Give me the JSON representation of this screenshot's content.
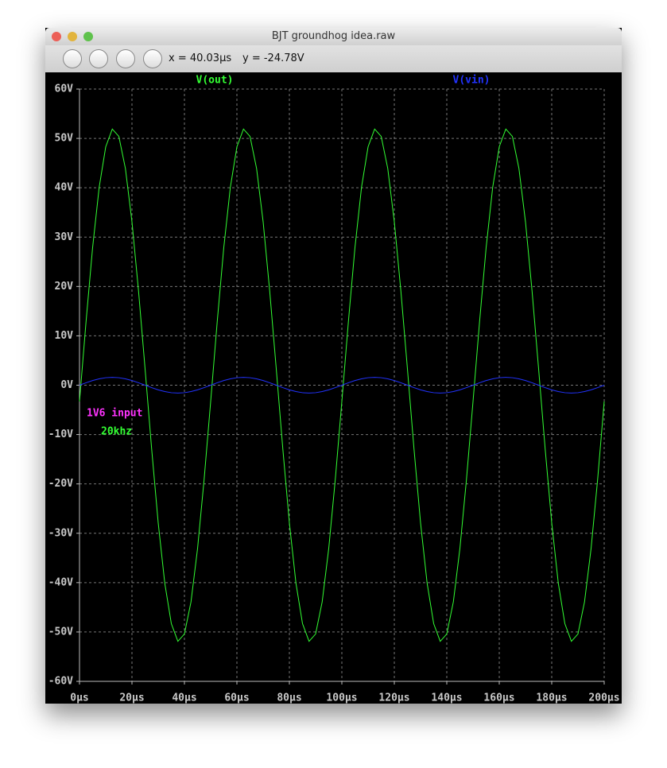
{
  "window": {
    "title": "BJT groundhog idea.raw",
    "cursor_x": "x = 40.03µs",
    "cursor_y": "y = -24.78V"
  },
  "chart_data": {
    "type": "line",
    "x": [
      0,
      2.5,
      5,
      7.5,
      10,
      12.5,
      15,
      17.5,
      20,
      22.5,
      25,
      27.5,
      30,
      32.5,
      35,
      37.5,
      40,
      42.5,
      45,
      47.5,
      50,
      52.5,
      55,
      57.5,
      60,
      62.5,
      65,
      67.5,
      70,
      72.5,
      75,
      77.5,
      80,
      82.5,
      85,
      87.5,
      90,
      92.5,
      95,
      97.5,
      100,
      102.5,
      105,
      107.5,
      110,
      112.5,
      115,
      117.5,
      120,
      122.5,
      125,
      127.5,
      130,
      132.5,
      135,
      137.5,
      140,
      142.5,
      145,
      147.5,
      150,
      152.5,
      155,
      157.5,
      160,
      162.5,
      165,
      167.5,
      170,
      172.5,
      175,
      177.5,
      180,
      182.5,
      185,
      187.5,
      190,
      192.5,
      195,
      197.5,
      200
    ],
    "series": [
      {
        "name": "V(out)",
        "color": "#33ff33",
        "values": [
          -3.3,
          12.9,
          27.9,
          40.1,
          48.3,
          51.9,
          50.4,
          43.9,
          33.1,
          19.1,
          3.3,
          -12.9,
          -27.9,
          -40.1,
          -48.3,
          -51.9,
          -50.4,
          -43.9,
          -33.1,
          -19.1,
          -3.3,
          12.9,
          27.9,
          40.1,
          48.3,
          51.9,
          50.4,
          43.9,
          33.1,
          19.1,
          3.3,
          -12.9,
          -27.9,
          -40.1,
          -48.3,
          -51.9,
          -50.4,
          -43.9,
          -33.1,
          -19.1,
          -3.3,
          12.9,
          27.9,
          40.1,
          48.3,
          51.9,
          50.4,
          43.9,
          33.1,
          19.1,
          3.3,
          -12.9,
          -27.9,
          -40.1,
          -48.3,
          -51.9,
          -50.4,
          -43.9,
          -33.1,
          -19.1,
          -3.3,
          12.9,
          27.9,
          40.1,
          48.3,
          51.9,
          50.4,
          43.9,
          33.1,
          19.1,
          3.3,
          -12.9,
          -27.9,
          -40.1,
          -48.3,
          -51.9,
          -50.4,
          -43.9,
          -33.1,
          -19.1,
          -3.3
        ]
      },
      {
        "name": "V(vin)",
        "color": "#2233ff",
        "values": [
          0,
          0.49,
          0.94,
          1.29,
          1.52,
          1.6,
          1.52,
          1.29,
          0.94,
          0.49,
          0,
          -0.49,
          -0.94,
          -1.29,
          -1.52,
          -1.6,
          -1.52,
          -1.29,
          -0.94,
          -0.49,
          0,
          0.49,
          0.94,
          1.29,
          1.52,
          1.6,
          1.52,
          1.29,
          0.94,
          0.49,
          0,
          -0.49,
          -0.94,
          -1.29,
          -1.52,
          -1.6,
          -1.52,
          -1.29,
          -0.94,
          -0.49,
          0,
          0.49,
          0.94,
          1.29,
          1.52,
          1.6,
          1.52,
          1.29,
          0.94,
          0.49,
          0,
          -0.49,
          -0.94,
          -1.29,
          -1.52,
          -1.6,
          -1.52,
          -1.29,
          -0.94,
          -0.49,
          0,
          0.49,
          0.94,
          1.29,
          1.52,
          1.6,
          1.52,
          1.29,
          0.94,
          0.49,
          0,
          -0.49,
          -0.94,
          -1.29,
          -1.52,
          -1.6,
          -1.52,
          -1.29,
          -0.94,
          -0.49,
          0
        ]
      }
    ],
    "xlim": [
      0,
      200
    ],
    "xticks": [
      {
        "value": 0,
        "label": "0µs"
      },
      {
        "value": 20,
        "label": "20µs"
      },
      {
        "value": 40,
        "label": "40µs"
      },
      {
        "value": 60,
        "label": "60µs"
      },
      {
        "value": 80,
        "label": "80µs"
      },
      {
        "value": 100,
        "label": "100µs"
      },
      {
        "value": 120,
        "label": "120µs"
      },
      {
        "value": 140,
        "label": "140µs"
      },
      {
        "value": 160,
        "label": "160µs"
      },
      {
        "value": 180,
        "label": "180µs"
      },
      {
        "value": 200,
        "label": "200µs"
      }
    ],
    "ylim": [
      -60,
      60
    ],
    "yticks": [
      {
        "value": -60,
        "label": "-60V"
      },
      {
        "value": -50,
        "label": "-50V"
      },
      {
        "value": -40,
        "label": "-40V"
      },
      {
        "value": -30,
        "label": "-30V"
      },
      {
        "value": -20,
        "label": "-20V"
      },
      {
        "value": -10,
        "label": "-10V"
      },
      {
        "value": 0,
        "label": "0V"
      },
      {
        "value": 10,
        "label": "10V"
      },
      {
        "value": 20,
        "label": "20V"
      },
      {
        "value": 30,
        "label": "30V"
      },
      {
        "value": 40,
        "label": "40V"
      },
      {
        "value": 50,
        "label": "50V"
      },
      {
        "value": 60,
        "label": "60V"
      }
    ],
    "grid": true,
    "annotations": [
      {
        "text": "1V6 input",
        "color": "#ff33ff"
      },
      {
        "text": "20khz",
        "color": "#33ff33"
      }
    ]
  }
}
